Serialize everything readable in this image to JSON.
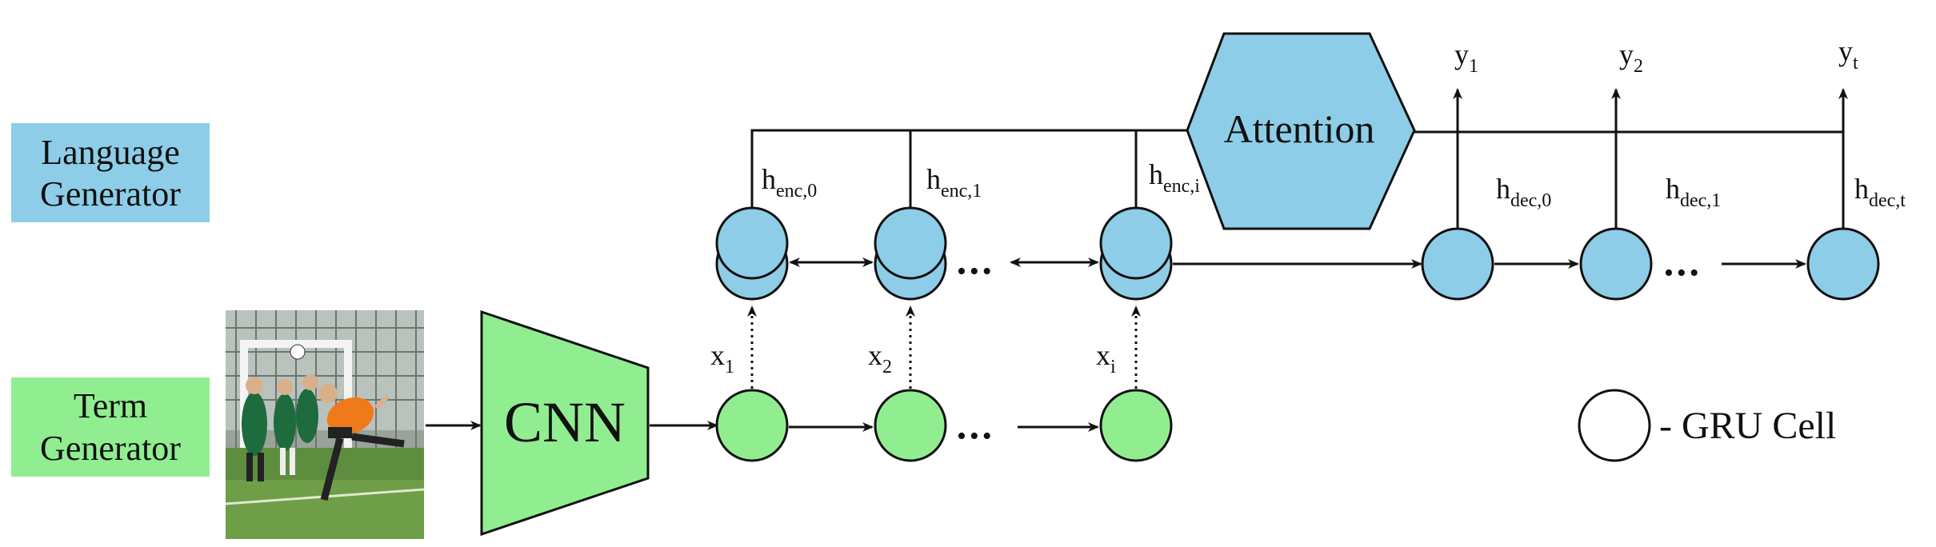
{
  "colors": {
    "language": "#8ECDE8",
    "term": "#90EE90",
    "gru_legend_fill": "#ffffff",
    "stroke": "#111111"
  },
  "side_labels": {
    "language_line1": "Language",
    "language_line2": "Generator",
    "term_line1": "Term",
    "term_line2": "Generator"
  },
  "cnn": {
    "label": "CNN"
  },
  "attention": {
    "label": "Attention"
  },
  "ellipsis": "•••",
  "inputs": [
    {
      "base": "x",
      "sub": "1"
    },
    {
      "base": "x",
      "sub": "2"
    },
    {
      "base": "x",
      "sub": "i"
    }
  ],
  "encoder_states": [
    {
      "base": "h",
      "sub": "enc,0"
    },
    {
      "base": "h",
      "sub": "enc,1"
    },
    {
      "base": "h",
      "sub": "enc,i"
    }
  ],
  "decoder_states": [
    {
      "base": "h",
      "sub": "dec,0"
    },
    {
      "base": "h",
      "sub": "dec,1"
    },
    {
      "base": "h",
      "sub": "dec,t"
    }
  ],
  "outputs": [
    {
      "base": "y",
      "sub": "1"
    },
    {
      "base": "y",
      "sub": "2"
    },
    {
      "base": "y",
      "sub": "t"
    }
  ],
  "legend": {
    "label": "- GRU Cell"
  },
  "image": {
    "alt_icon": "soccer-photo"
  }
}
